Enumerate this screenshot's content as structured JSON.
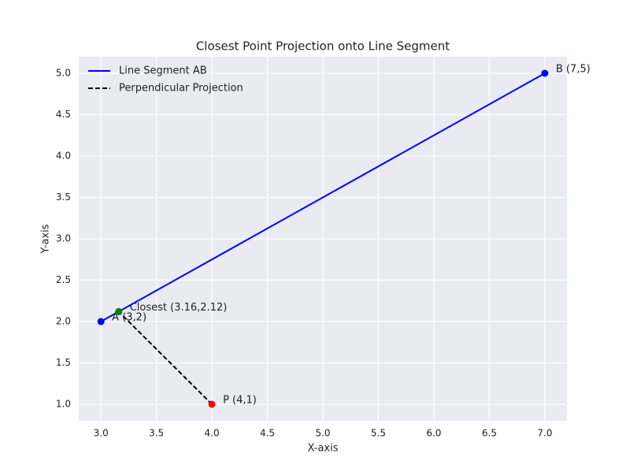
{
  "chart_data": {
    "type": "line",
    "title": "Closest Point Projection onto Line Segment",
    "x_label": "X-axis",
    "y_label": "Y-axis",
    "xlim": [
      2.8,
      7.2
    ],
    "ylim": [
      0.8,
      5.2
    ],
    "xticks": [
      {
        "value": 3,
        "label": "3.0"
      },
      {
        "value": 3.5,
        "label": "3.5"
      },
      {
        "value": 4,
        "label": "4.0"
      },
      {
        "value": 4.5,
        "label": "4.5"
      },
      {
        "value": 5,
        "label": "5.0"
      },
      {
        "value": 5.5,
        "label": "5.5"
      },
      {
        "value": 6,
        "label": "6.0"
      },
      {
        "value": 6.5,
        "label": "6.5"
      },
      {
        "value": 7,
        "label": "7.0"
      }
    ],
    "yticks": [
      {
        "value": 1,
        "label": "1.0"
      },
      {
        "value": 1.5,
        "label": "1.5"
      },
      {
        "value": 2,
        "label": "2.0"
      },
      {
        "value": 2.5,
        "label": "2.5"
      },
      {
        "value": 3,
        "label": "3.0"
      },
      {
        "value": 3.5,
        "label": "3.5"
      },
      {
        "value": 4,
        "label": "4.0"
      },
      {
        "value": 4.5,
        "label": "4.5"
      },
      {
        "value": 5,
        "label": "5.0"
      }
    ],
    "grid": true,
    "legend": "upper left",
    "series": [
      {
        "name": "Line Segment AB",
        "color": "#0000ff",
        "style": "solid",
        "x": [
          3,
          7
        ],
        "values": [
          2,
          5
        ]
      },
      {
        "name": "Perpendicular Projection",
        "color": "#000000",
        "style": "dashed",
        "x": [
          4,
          3.16
        ],
        "values": [
          1,
          2.12
        ]
      }
    ],
    "points": [
      {
        "label": "A (3,2)",
        "color": "#0000ff",
        "x": 3,
        "y": 2
      },
      {
        "label": "B (7,5)",
        "color": "#0000ff",
        "x": 7,
        "y": 5
      },
      {
        "label": "P (4,1)",
        "color": "#ff0000",
        "x": 4,
        "y": 1
      },
      {
        "label": "Closest (3.16,2.12)",
        "color": "#008000",
        "x": 3.16,
        "y": 2.12
      }
    ]
  }
}
